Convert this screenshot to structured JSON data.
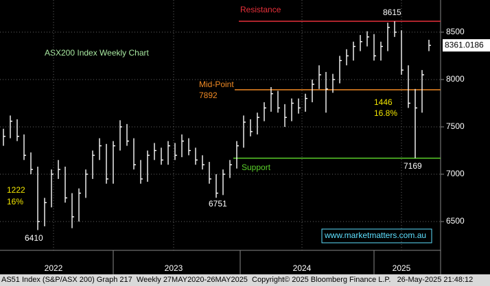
{
  "chart_data": {
    "type": "hlc",
    "title": "ASX200 Index Weekly Chart",
    "high": [
      7480,
      7620,
      7580,
      7420,
      7230,
      7080,
      6750,
      7050,
      7150,
      7080,
      6800,
      6850,
      7050,
      7250,
      7380,
      7320,
      7350,
      7570,
      7530,
      7380,
      7150,
      7250,
      7330,
      7280,
      7350,
      7330,
      7420,
      7380,
      7280,
      7200,
      7130,
      7000,
      7050,
      7150,
      7350,
      7620,
      7580,
      7650,
      7760,
      7920,
      7880,
      7740,
      7800,
      7800,
      7850,
      8000,
      8150,
      8080,
      8060,
      8250,
      8320,
      8400,
      8470,
      8510,
      8480,
      8400,
      8600,
      8615,
      8520,
      8150,
      7900,
      8100,
      8420
    ],
    "low": [
      7300,
      7380,
      7350,
      7150,
      7000,
      6410,
      6450,
      6650,
      6950,
      6700,
      6430,
      6500,
      6750,
      6950,
      7150,
      6900,
      6900,
      7250,
      7300,
      7050,
      6900,
      6920,
      7150,
      7100,
      7100,
      7150,
      7180,
      7200,
      7100,
      7050,
      6900,
      6751,
      6780,
      6960,
      7060,
      7280,
      7400,
      7420,
      7560,
      7660,
      7650,
      7500,
      7560,
      7640,
      7660,
      7760,
      7900,
      7650,
      7860,
      7960,
      8150,
      8200,
      8300,
      8350,
      8200,
      8200,
      8300,
      8450,
      8050,
      7700,
      7169,
      7650,
      8300
    ],
    "close": [
      7400,
      7560,
      7400,
      7200,
      7050,
      6500,
      6700,
      7000,
      7050,
      6750,
      6550,
      6800,
      7000,
      7200,
      7300,
      6950,
      7300,
      7500,
      7350,
      7100,
      6950,
      7200,
      7250,
      7150,
      7300,
      7200,
      7350,
      7250,
      7150,
      7100,
      6950,
      6800,
      7000,
      7100,
      7300,
      7550,
      7450,
      7600,
      7700,
      7850,
      7700,
      7600,
      7750,
      7700,
      7800,
      7950,
      8050,
      7900,
      8000,
      8200,
      8250,
      8350,
      8400,
      8450,
      8250,
      8350,
      8550,
      8500,
      8100,
      7750,
      7700,
      8050,
      8361.0186
    ],
    "color": "#ffffff",
    "xlim": [
      -0.5,
      63.7
    ],
    "xticks": [
      {
        "value": 7.3,
        "label": "2022"
      },
      {
        "value": 24.8,
        "label": "2023"
      },
      {
        "value": 43.5,
        "label": "2024"
      },
      {
        "value": 58,
        "label": "2025"
      }
    ],
    "ylim": [
      6196,
      8840
    ],
    "yticks": [
      6500,
      7000,
      7500,
      8000,
      8500
    ],
    "grid": true,
    "levels": [
      {
        "label": "Resistance",
        "value": 8615,
        "color": "#e8303a"
      },
      {
        "label": "Mid-Point",
        "value": 7892,
        "color": "#f08a24"
      },
      {
        "label": "Support",
        "value": 7169,
        "color": "#5ad02a"
      }
    ],
    "annotations": [
      "1446",
      "16.8%",
      "1222",
      "16%"
    ],
    "website": "www.marketmatters.com.au",
    "footer": "AS51 Index (S&P/ASX 200) Graph 217  Weekly 27MAY2020-26MAY2025  Copyright© 2025 Bloomberg Finance L.P.   26-May-2025 21:48:12"
  }
}
